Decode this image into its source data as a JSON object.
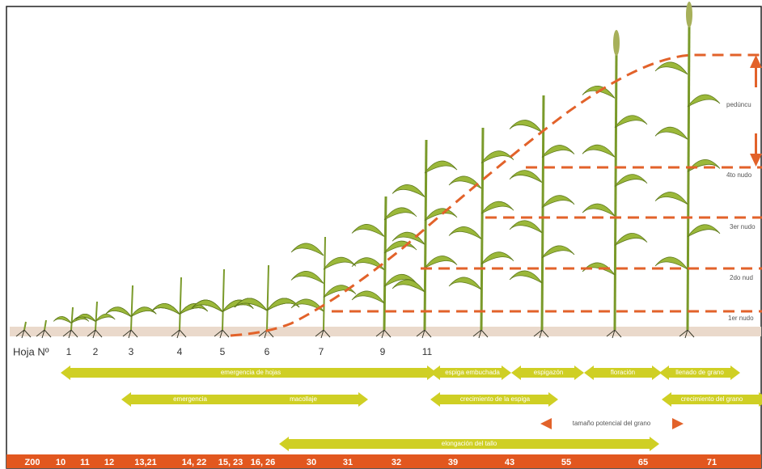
{
  "leaf_row": {
    "label": "Hoja Nº",
    "leaves": [
      "1",
      "2",
      "3",
      "4",
      "5",
      "6",
      "7",
      "9",
      "11"
    ]
  },
  "node_labels": [
    "pedúncu",
    "4to nudo",
    "3er nudo",
    "2do nud",
    "1er nudo"
  ],
  "phases": {
    "row1": [
      "emergencia de hojas",
      "espiga embuchada",
      "espigazón",
      "floración",
      "llenado de grano"
    ],
    "row2": [
      "emergencia",
      "macollaje",
      "crecimiento de la espiga",
      "crecimiento del grano"
    ],
    "row3": [
      "tamaño potencial del grano"
    ],
    "row4": [
      "elongación del tallo"
    ]
  },
  "zadoks": [
    "Z00",
    "10",
    "11",
    "12",
    "13,21",
    "14, 22",
    "15, 23",
    "16, 26",
    "30",
    "31",
    "32",
    "39",
    "43",
    "55",
    "65",
    "71"
  ]
}
